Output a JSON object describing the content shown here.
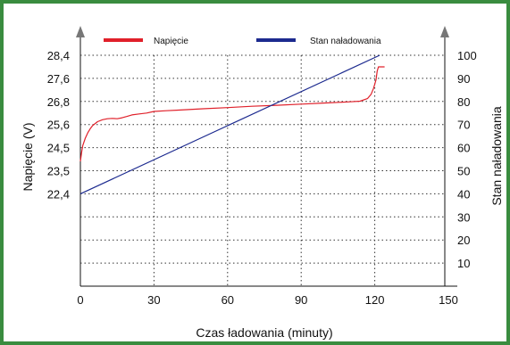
{
  "chart_data": {
    "type": "line",
    "xlabel": "Czas ładowania (minuty)",
    "ylabel_left": "Napięcie (V)",
    "ylabel_right": "Stan naładowania",
    "x_ticks": [
      "0",
      "30",
      "60",
      "90",
      "120",
      "150"
    ],
    "x_range": [
      0,
      150
    ],
    "y_left_ticks": [
      "22,4",
      "23,5",
      "24,5",
      "25,6",
      "26,8",
      "27,6",
      "28,4"
    ],
    "y_right_ticks": [
      "10",
      "20",
      "30",
      "40",
      "50",
      "60",
      "70",
      "80",
      "90",
      "100"
    ],
    "y_right_range": [
      0,
      100
    ],
    "grid": true,
    "legend_position": "top",
    "series": [
      {
        "name": "Napięcie",
        "color": "#e0202a",
        "axis": "left",
        "points": [
          [
            0.0,
            23.9
          ],
          [
            0.5,
            24.3
          ],
          [
            1.0,
            24.6
          ],
          [
            2.0,
            24.95
          ],
          [
            3.0,
            25.2
          ],
          [
            4.0,
            25.4
          ],
          [
            5.0,
            25.55
          ],
          [
            7.0,
            25.75
          ],
          [
            9.0,
            25.85
          ],
          [
            11.0,
            25.9
          ],
          [
            13.0,
            25.92
          ],
          [
            15.0,
            25.9
          ],
          [
            17.0,
            25.95
          ],
          [
            19.0,
            26.02
          ],
          [
            21.0,
            26.1
          ],
          [
            24.0,
            26.15
          ],
          [
            27.0,
            26.2
          ],
          [
            30.0,
            26.28
          ],
          [
            35.0,
            26.32
          ],
          [
            40.0,
            26.35
          ],
          [
            50.0,
            26.42
          ],
          [
            60.0,
            26.48
          ],
          [
            70.0,
            26.55
          ],
          [
            80.0,
            26.6
          ],
          [
            90.0,
            26.66
          ],
          [
            100.0,
            26.72
          ],
          [
            110.0,
            26.78
          ],
          [
            114.0,
            26.81
          ],
          [
            117.0,
            26.9
          ],
          [
            118.5,
            27.05
          ],
          [
            119.5,
            27.25
          ],
          [
            120.5,
            27.55
          ],
          [
            121.0,
            27.85
          ],
          [
            121.5,
            28.0
          ],
          [
            124.0,
            28.0
          ]
        ]
      },
      {
        "name": "Stan naładowania",
        "color": "#1c2a8f",
        "axis": "right",
        "points": [
          [
            0,
            40
          ],
          [
            122,
            100
          ]
        ]
      }
    ]
  }
}
